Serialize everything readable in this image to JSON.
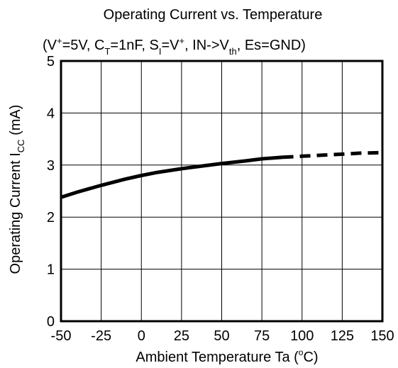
{
  "chart_data": {
    "type": "line",
    "title": "Operating Current vs. Temperature",
    "subtitle": {
      "p1": "(V",
      "p1_sup": "+",
      "p2": "=5V, C",
      "p2_sub": "T",
      "p3": "=1nF, S",
      "p3_sub": "I",
      "p4": "=V",
      "p4_sup": "+",
      "p5": ", IN->V",
      "p5_sub": "th",
      "p6": ", Es=GND)"
    },
    "xlabel": {
      "main": "Ambient Temperature Ta  (",
      "sup": "o",
      "end": "C)"
    },
    "ylabel": {
      "main": "Operating Current  I",
      "sub": "CC",
      "end": "  (mA)"
    },
    "xlim": [
      -50,
      150
    ],
    "ylim": [
      0,
      5
    ],
    "x_ticks": [
      "-50",
      "-25",
      "0",
      "25",
      "50",
      "75",
      "100",
      "125",
      "150"
    ],
    "y_ticks": [
      "0",
      "1",
      "2",
      "3",
      "4",
      "5"
    ],
    "grid": true,
    "series": [
      {
        "style": "solid",
        "x": [
          -50,
          -40,
          -25,
          -10,
          0,
          10,
          25,
          40,
          50,
          65,
          75,
          88
        ],
        "y": [
          2.38,
          2.48,
          2.61,
          2.73,
          2.8,
          2.86,
          2.93,
          2.99,
          3.03,
          3.08,
          3.12,
          3.15
        ]
      },
      {
        "style": "dashed",
        "x": [
          88,
          100,
          112,
          125,
          137,
          150
        ],
        "y": [
          3.15,
          3.17,
          3.19,
          3.21,
          3.23,
          3.24
        ]
      }
    ]
  }
}
